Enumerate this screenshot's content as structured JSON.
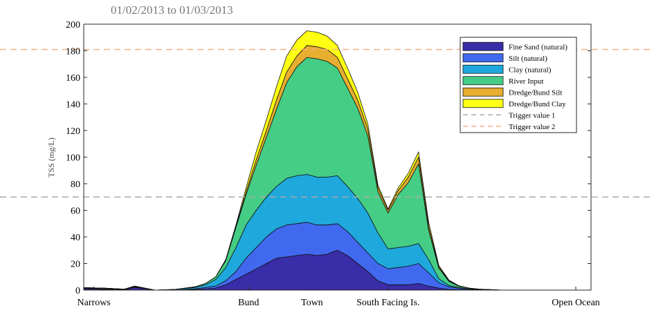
{
  "chart_data": {
    "type": "area",
    "stacked": true,
    "title": "01/02/2013 to 01/03/2013",
    "ylabel": "TSS (mg/L)",
    "xlabel": "",
    "ylim": [
      0,
      200
    ],
    "yticks": [
      0,
      20,
      40,
      60,
      80,
      100,
      120,
      140,
      160,
      180,
      200
    ],
    "xlim": [
      0,
      100
    ],
    "x_tick_labels": [
      {
        "x": 2,
        "label": "Narrows"
      },
      {
        "x": 32.5,
        "label": "Bund"
      },
      {
        "x": 45,
        "label": "Town"
      },
      {
        "x": 60,
        "label": "South Facing Is."
      },
      {
        "x": 97,
        "label": "Open Ocean"
      }
    ],
    "grid": false,
    "legend_position": "top-right",
    "x": [
      0,
      4,
      8,
      10,
      14,
      18,
      22,
      24,
      26,
      28,
      30,
      32,
      34,
      36,
      38,
      40,
      42,
      44,
      46,
      48,
      50,
      52,
      54,
      56,
      58,
      60,
      62,
      64,
      66,
      68,
      70,
      72,
      74,
      76,
      78,
      82,
      86,
      90,
      94,
      100
    ],
    "series": [
      {
        "name": "Fine Sand (natural)",
        "color": "#3a2da8",
        "values": [
          1,
          0.5,
          0.2,
          2,
          0,
          0,
          0.5,
          1,
          1.5,
          4,
          8,
          12,
          16,
          20,
          24,
          25,
          26,
          27,
          26,
          27,
          30,
          26,
          20,
          14,
          7,
          4,
          4,
          4,
          5,
          3,
          1.5,
          0.5,
          0.3,
          0.2,
          0.1,
          0,
          0,
          0,
          0,
          0
        ]
      },
      {
        "name": "Silt (natural)",
        "color": "#4169f0",
        "values": [
          0.5,
          0.5,
          0.2,
          0.5,
          0,
          0,
          0.5,
          1,
          1.5,
          3,
          6,
          12,
          16,
          20,
          22,
          24,
          24,
          24,
          23,
          22,
          20,
          18,
          16,
          14,
          13,
          12,
          13,
          14,
          15,
          10,
          4,
          2,
          1,
          0.5,
          0.2,
          0,
          0,
          0,
          0,
          0
        ]
      },
      {
        "name": "Clay (natural)",
        "color": "#1fa8dc",
        "values": [
          0.3,
          0.5,
          0.3,
          0.5,
          0,
          0.5,
          1,
          2,
          5,
          10,
          18,
          25,
          28,
          30,
          32,
          35,
          36,
          36,
          36,
          36,
          36,
          34,
          33,
          30,
          23,
          15,
          15,
          15,
          15,
          10,
          3,
          1,
          0.5,
          0.3,
          0.2,
          0,
          0,
          0,
          0,
          0
        ]
      },
      {
        "name": "River Input",
        "color": "#45cd85",
        "values": [
          0,
          0,
          0,
          0,
          0,
          0,
          0.5,
          1,
          2,
          5,
          15,
          23,
          34,
          45,
          58,
          72,
          82,
          88,
          89,
          87,
          81,
          74,
          68,
          58,
          31,
          27,
          40,
          48,
          60,
          22,
          8,
          3,
          1,
          0.5,
          0.2,
          0.1,
          0,
          0,
          0,
          0
        ]
      },
      {
        "name": "Dredge/Bund Silt",
        "color": "#e8ae30",
        "values": [
          0,
          0,
          0,
          0,
          0,
          0,
          0,
          0,
          0,
          0.5,
          1,
          2,
          4,
          5,
          7,
          8,
          8,
          9,
          9,
          9,
          8,
          7,
          6,
          5,
          3,
          2,
          3,
          4,
          5,
          3,
          1,
          0.5,
          0.2,
          0,
          0,
          0,
          0,
          0,
          0,
          0
        ]
      },
      {
        "name": "Dredge/Bund Clay",
        "color": "#ffff14",
        "values": [
          0,
          0,
          0,
          0,
          0,
          0,
          0,
          0,
          0,
          0.5,
          1,
          3,
          6,
          8,
          10,
          12,
          12,
          11,
          11,
          10,
          9,
          8,
          6,
          4,
          2,
          1,
          2,
          3,
          4,
          3,
          1,
          0.5,
          0.2,
          0,
          0,
          0,
          0,
          0,
          0,
          0
        ]
      }
    ],
    "reference_lines": [
      {
        "name": "Trigger value 1",
        "y": 70,
        "color": "#aaaaaa",
        "dash": true
      },
      {
        "name": "Trigger value 2",
        "y": 181,
        "color": "#f6b183",
        "dash": true
      }
    ]
  }
}
